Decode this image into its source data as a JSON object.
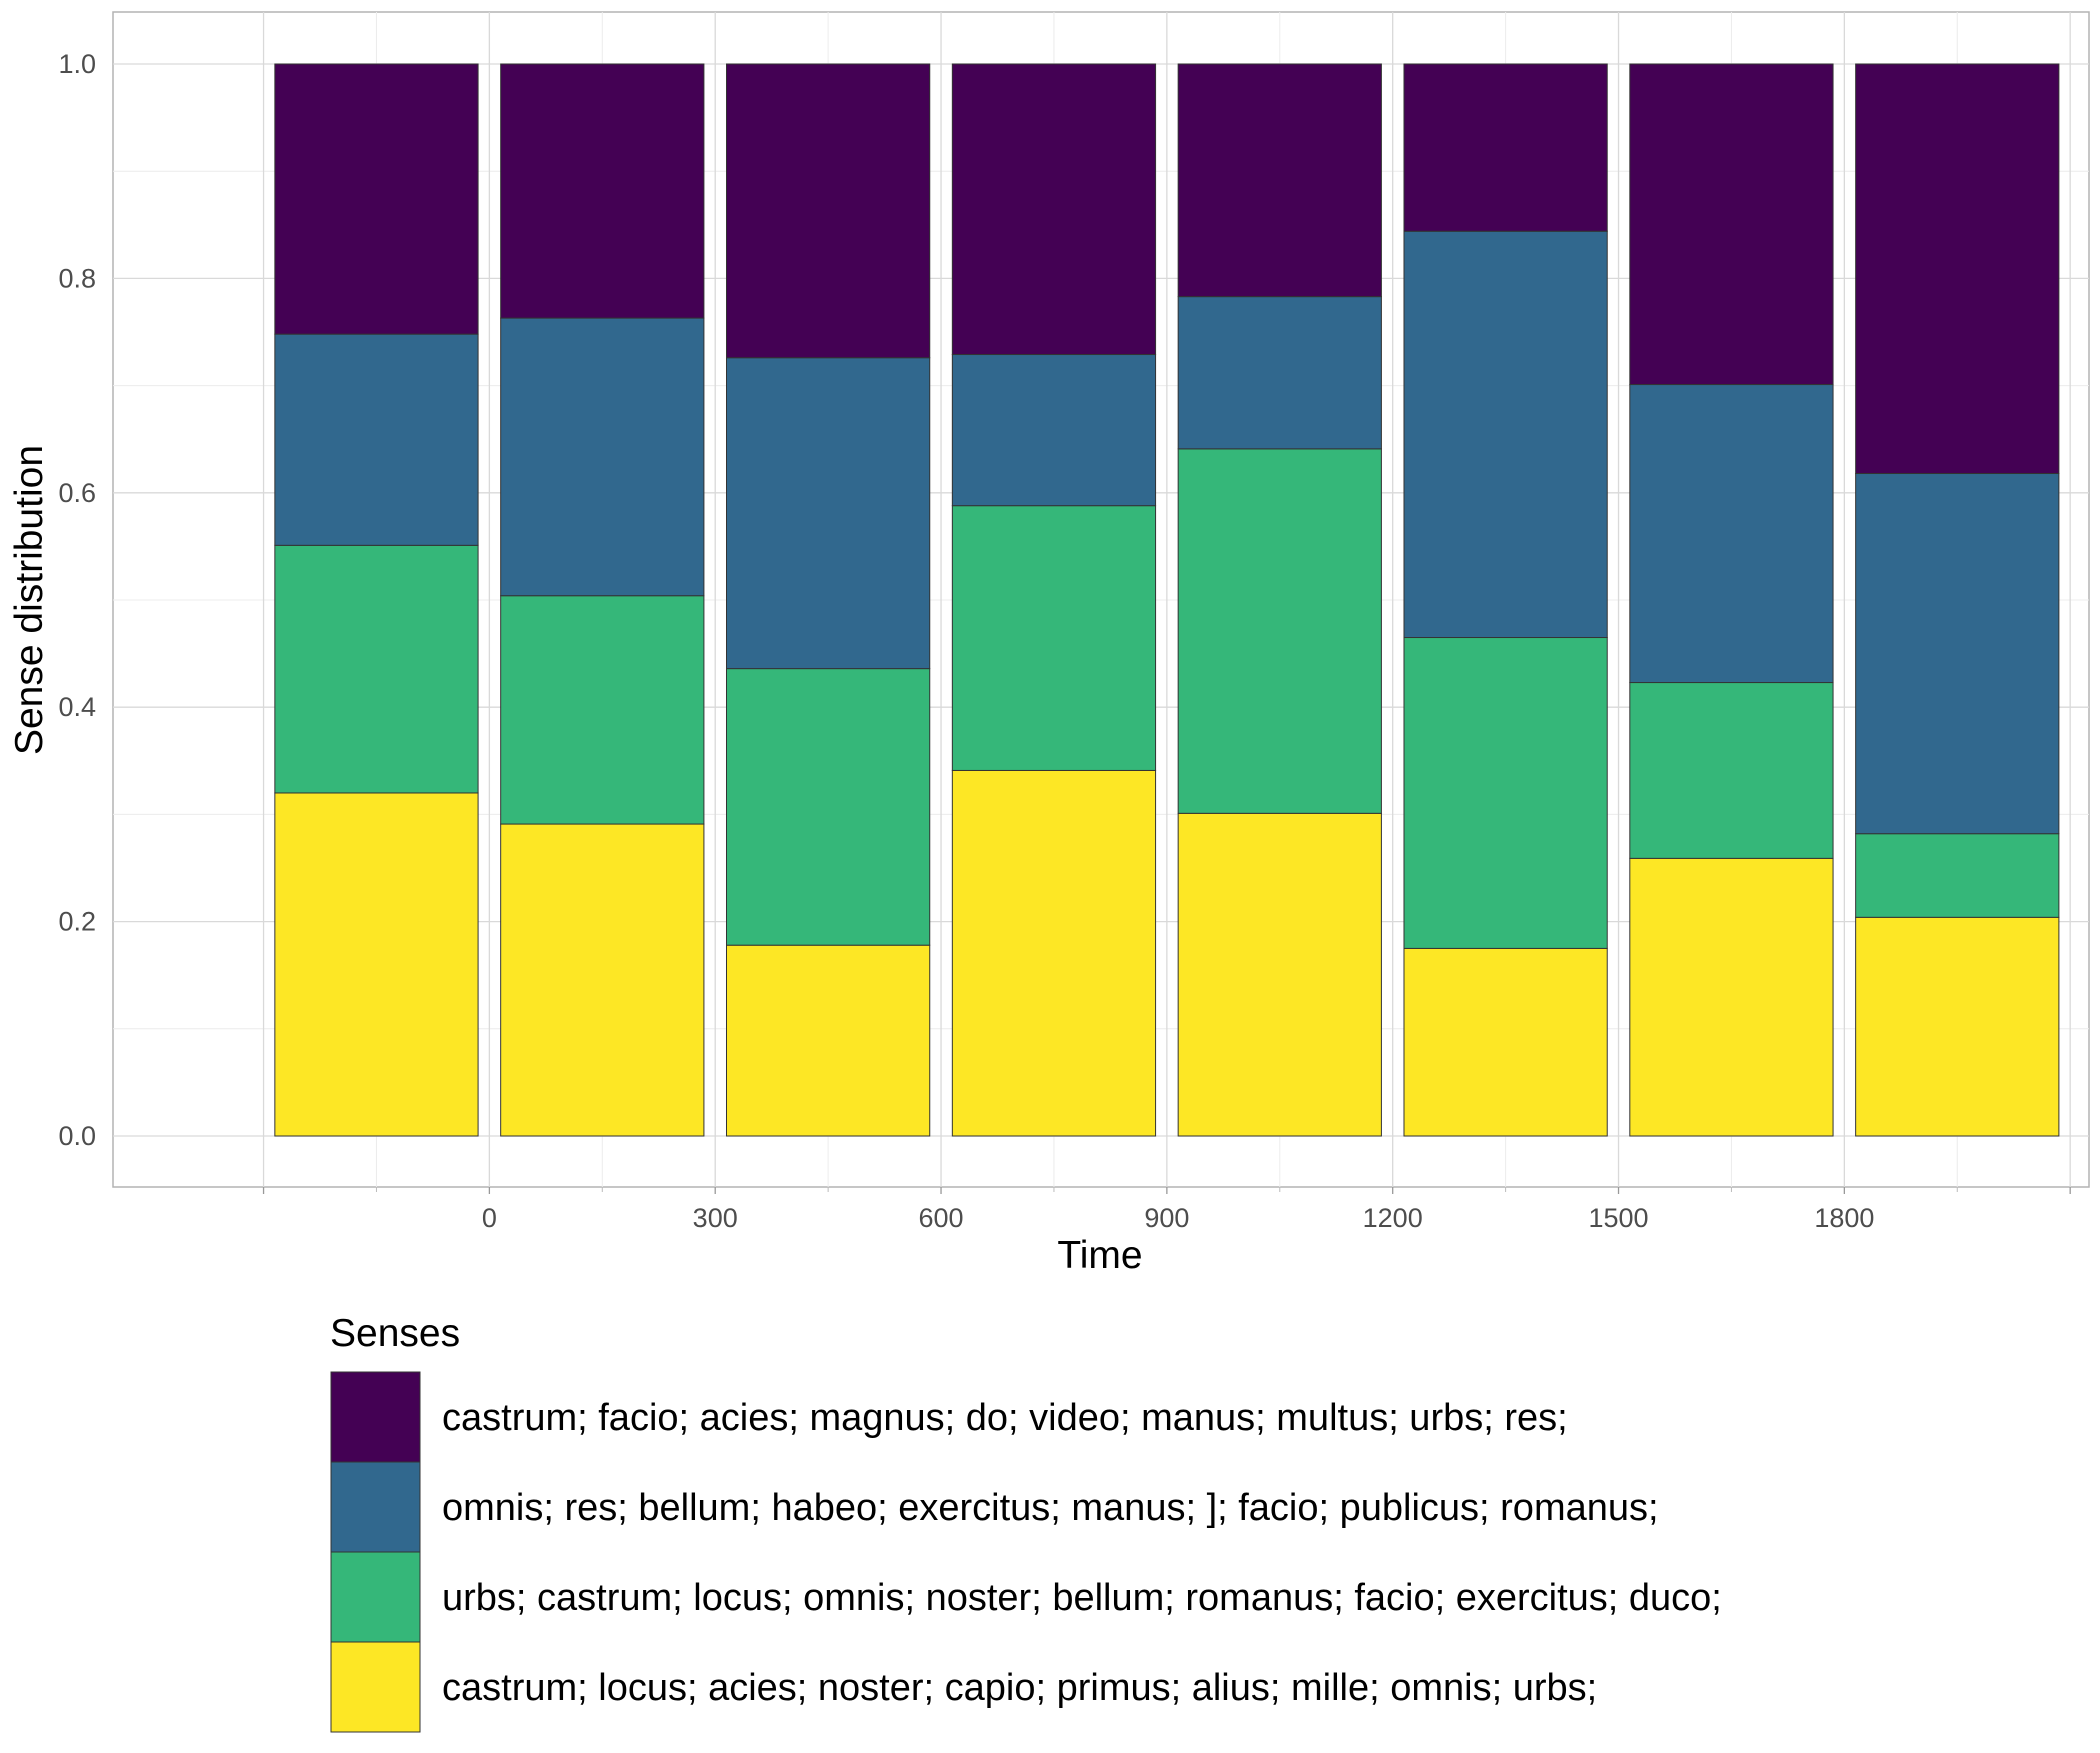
{
  "chart_data": {
    "type": "bar",
    "stacked": true,
    "title": "",
    "xlabel": "Time",
    "ylabel": "Sense distribution",
    "ylim": [
      0,
      1.0
    ],
    "xlim": [
      -500,
      2125
    ],
    "x_ticks": [
      0,
      300,
      600,
      900,
      1200,
      1500,
      1800
    ],
    "y_ticks": [
      "0.0",
      "0.2",
      "0.4",
      "0.6",
      "0.8",
      "1.0"
    ],
    "grid": true,
    "legend_position": "bottom",
    "legend_title": "Senses",
    "bar_centers": [
      -150,
      150,
      450,
      750,
      1050,
      1350,
      1650,
      1950
    ],
    "series": [
      {
        "name": "castrum; locus; acies; noster; capio; primus; alius; mille; omnis; urbs;",
        "color": "#FDE725",
        "values": [
          0.32,
          0.291,
          0.178,
          0.341,
          0.301,
          0.175,
          0.259,
          0.204
        ]
      },
      {
        "name": "urbs; castrum; locus; omnis; noster; bellum; romanus; facio; exercitus; duco;",
        "color": "#35B779",
        "values": [
          0.231,
          0.213,
          0.258,
          0.247,
          0.34,
          0.29,
          0.164,
          0.078
        ]
      },
      {
        "name": "omnis; res; bellum; habeo; exercitus; manus; ]; facio; publicus; romanus;",
        "color": "#31688E",
        "values": [
          0.197,
          0.259,
          0.29,
          0.141,
          0.142,
          0.379,
          0.278,
          0.336
        ]
      },
      {
        "name": "castrum; facio; acies; magnus; do; video; manus; multus; urbs; res;",
        "color": "#440154",
        "values": [
          0.252,
          0.237,
          0.274,
          0.271,
          0.217,
          0.156,
          0.299,
          0.382
        ]
      }
    ]
  }
}
